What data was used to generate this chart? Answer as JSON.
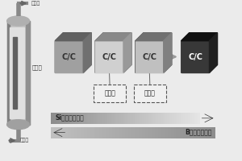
{
  "bg_color": "#e8e8e8",
  "furnace_label_top": "出气口",
  "furnace_label_body": "发热体",
  "furnace_label_bottom": "进气口",
  "cc_labels": [
    "C/C",
    "C/C",
    "C/C",
    "C/C"
  ],
  "cc_shades": [
    {
      "face": "#a0a0a0",
      "top": "#606060",
      "right": "#707070"
    },
    {
      "face": "#d0d0d0",
      "top": "#888888",
      "right": "#999999"
    },
    {
      "face": "#c0c0c0",
      "top": "#707070",
      "right": "#808080"
    },
    {
      "face": "#383838",
      "top": "#101010",
      "right": "#202020"
    }
  ],
  "dashed_labels": [
    "富硼相",
    "过渡相"
  ],
  "arrow1_label": "Si元素含量变化",
  "arrow2_label": "B元素含量变化"
}
